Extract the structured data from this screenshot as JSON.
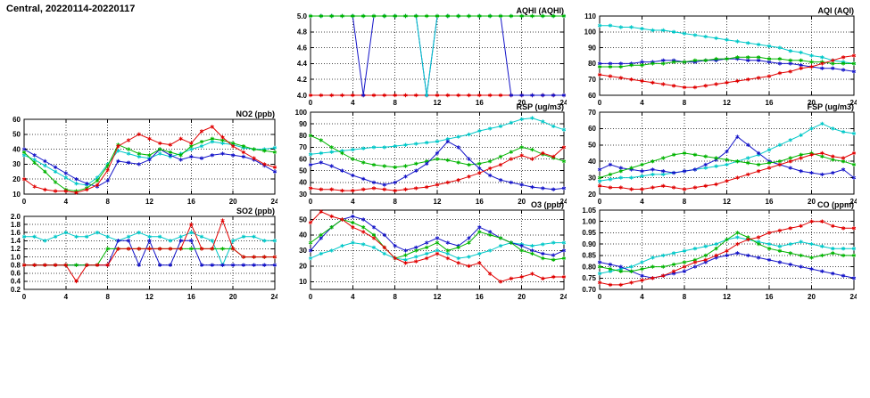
{
  "page_title": "Central, 20220114-20220117",
  "colors": {
    "red": "#e00000",
    "green": "#00b400",
    "blue": "#1414c8",
    "cyan": "#00c8c8"
  },
  "chart_data": [
    {
      "id": "aqhi",
      "type": "line",
      "title": "AQHI (AQHI)",
      "xlabel": "",
      "ylabel": "",
      "xlim": [
        0,
        24
      ],
      "xticks": [
        0,
        4,
        8,
        12,
        16,
        20,
        24
      ],
      "ylim": [
        4.0,
        5.0
      ],
      "yticks": [
        4.0,
        4.2,
        4.4,
        4.6,
        4.8,
        5.0
      ],
      "ydec": 1,
      "grid": true,
      "series": [
        {
          "color": "red",
          "values": [
            4,
            4,
            4,
            4,
            4,
            4,
            4,
            4,
            4,
            4,
            4,
            4,
            4,
            4,
            4,
            4,
            4,
            4,
            4,
            4,
            4,
            4,
            4,
            4,
            4
          ]
        },
        {
          "color": "blue",
          "values": [
            5,
            5,
            5,
            5,
            5,
            4,
            5,
            5,
            5,
            5,
            5,
            4,
            5,
            5,
            5,
            5,
            5,
            5,
            5,
            4,
            4,
            4,
            4,
            4,
            4
          ]
        },
        {
          "color": "cyan",
          "values": [
            5,
            5,
            5,
            5,
            5,
            5,
            5,
            5,
            5,
            5,
            5,
            4,
            5,
            5,
            5,
            5,
            5,
            5,
            5,
            5,
            5,
            5,
            5,
            5,
            5
          ]
        },
        {
          "color": "green",
          "values": [
            5,
            5,
            5,
            5,
            5,
            5,
            5,
            5,
            5,
            5,
            5,
            5,
            5,
            5,
            5,
            5,
            5,
            5,
            5,
            5,
            5,
            5,
            5,
            5,
            5
          ]
        }
      ]
    },
    {
      "id": "aqi",
      "type": "line",
      "title": "AQI (AQI)",
      "xlabel": "",
      "ylabel": "",
      "xlim": [
        0,
        24
      ],
      "xticks": [
        0,
        4,
        8,
        12,
        16,
        20,
        24
      ],
      "ylim": [
        60,
        110
      ],
      "yticks": [
        60,
        70,
        80,
        90,
        100,
        110
      ],
      "ydec": 0,
      "grid": true,
      "series": [
        {
          "color": "cyan",
          "values": [
            104,
            104,
            103,
            103,
            102,
            101,
            101,
            100,
            99,
            98,
            97,
            96,
            95,
            94,
            93,
            92,
            91,
            90,
            88,
            87,
            85,
            84,
            82,
            81,
            80
          ]
        },
        {
          "color": "blue",
          "values": [
            80,
            80,
            80,
            80,
            81,
            81,
            82,
            82,
            81,
            81,
            82,
            82,
            83,
            83,
            82,
            82,
            81,
            80,
            80,
            79,
            78,
            77,
            77,
            76,
            75
          ]
        },
        {
          "color": "green",
          "values": [
            78,
            78,
            78,
            79,
            79,
            80,
            80,
            81,
            81,
            82,
            82,
            83,
            83,
            84,
            84,
            84,
            83,
            83,
            82,
            82,
            81,
            81,
            80,
            80,
            80
          ]
        },
        {
          "color": "red",
          "values": [
            73,
            72,
            71,
            70,
            69,
            68,
            67,
            66,
            65,
            65,
            66,
            67,
            68,
            69,
            70,
            71,
            72,
            74,
            75,
            77,
            78,
            80,
            82,
            84,
            85
          ]
        }
      ]
    },
    {
      "id": "no2",
      "type": "line",
      "title": "NO2 (ppb)",
      "xlabel": "",
      "ylabel": "",
      "xlim": [
        0,
        24
      ],
      "xticks": [
        0,
        4,
        8,
        12,
        16,
        20,
        24
      ],
      "ylim": [
        10,
        60
      ],
      "yticks": [
        10,
        20,
        30,
        40,
        50,
        60
      ],
      "ydec": 0,
      "grid": true,
      "series": [
        {
          "color": "cyan",
          "values": [
            36,
            33,
            29,
            25,
            21,
            17,
            16,
            21,
            30,
            39,
            37,
            35,
            34,
            37,
            35,
            37,
            40,
            42,
            45,
            44,
            43,
            41,
            40,
            40,
            41
          ]
        },
        {
          "color": "blue",
          "values": [
            40,
            36,
            32,
            28,
            24,
            20,
            17,
            15,
            19,
            32,
            31,
            30,
            33,
            40,
            36,
            33,
            35,
            34,
            36,
            37,
            36,
            35,
            33,
            29,
            25
          ]
        },
        {
          "color": "green",
          "values": [
            38,
            31,
            25,
            18,
            13,
            12,
            14,
            19,
            29,
            43,
            40,
            37,
            36,
            40,
            38,
            36,
            42,
            45,
            47,
            46,
            44,
            42,
            40,
            39,
            38
          ]
        },
        {
          "color": "red",
          "values": [
            20,
            15,
            13,
            12,
            12,
            11,
            13,
            16,
            26,
            42,
            46,
            50,
            47,
            44,
            43,
            47,
            44,
            52,
            55,
            48,
            42,
            38,
            34,
            30,
            28
          ]
        }
      ]
    },
    {
      "id": "rsp",
      "type": "line",
      "title": "RSP (ug/m3)",
      "xlabel": "",
      "ylabel": "",
      "xlim": [
        0,
        24
      ],
      "xticks": [
        0,
        4,
        8,
        12,
        16,
        20,
        24
      ],
      "ylim": [
        30,
        100
      ],
      "yticks": [
        30,
        40,
        50,
        60,
        70,
        80,
        90,
        100
      ],
      "ydec": 0,
      "grid": true,
      "series": [
        {
          "color": "cyan",
          "values": [
            64,
            65,
            66,
            67,
            68,
            69,
            70,
            70,
            71,
            72,
            73,
            74,
            75,
            77,
            79,
            81,
            84,
            86,
            88,
            91,
            94,
            95,
            92,
            88,
            85
          ]
        },
        {
          "color": "green",
          "values": [
            80,
            76,
            70,
            65,
            60,
            57,
            55,
            54,
            53,
            54,
            56,
            58,
            60,
            59,
            57,
            55,
            56,
            58,
            62,
            66,
            70,
            68,
            64,
            61,
            58
          ]
        },
        {
          "color": "blue",
          "values": [
            55,
            57,
            54,
            50,
            46,
            43,
            40,
            38,
            40,
            45,
            50,
            56,
            65,
            75,
            70,
            60,
            52,
            46,
            42,
            40,
            38,
            36,
            35,
            34,
            35
          ]
        },
        {
          "color": "red",
          "values": [
            35,
            34,
            34,
            33,
            33,
            34,
            35,
            34,
            33,
            34,
            35,
            36,
            38,
            40,
            42,
            45,
            48,
            52,
            55,
            60,
            63,
            60,
            65,
            62,
            70
          ]
        }
      ]
    },
    {
      "id": "fsp",
      "type": "line",
      "title": "FSP (ug/m3)",
      "xlabel": "",
      "ylabel": "",
      "xlim": [
        0,
        24
      ],
      "xticks": [
        0,
        4,
        8,
        12,
        16,
        20,
        24
      ],
      "ylim": [
        20,
        70
      ],
      "yticks": [
        20,
        30,
        40,
        50,
        60,
        70
      ],
      "ydec": 0,
      "grid": true,
      "series": [
        {
          "color": "cyan",
          "values": [
            28,
            29,
            30,
            30,
            31,
            32,
            32,
            33,
            34,
            35,
            36,
            37,
            38,
            40,
            42,
            44,
            47,
            50,
            53,
            56,
            60,
            63,
            60,
            58,
            57
          ]
        },
        {
          "color": "blue",
          "values": [
            35,
            38,
            36,
            35,
            34,
            35,
            34,
            33,
            34,
            35,
            38,
            41,
            46,
            55,
            50,
            45,
            40,
            38,
            36,
            34,
            33,
            32,
            33,
            35,
            30
          ]
        },
        {
          "color": "green",
          "values": [
            30,
            32,
            34,
            36,
            38,
            40,
            42,
            44,
            45,
            44,
            43,
            42,
            41,
            40,
            39,
            38,
            39,
            40,
            42,
            44,
            45,
            43,
            41,
            40,
            38
          ]
        },
        {
          "color": "red",
          "values": [
            25,
            24,
            24,
            23,
            23,
            24,
            25,
            24,
            23,
            24,
            25,
            26,
            28,
            30,
            32,
            34,
            36,
            38,
            40,
            42,
            44,
            45,
            43,
            42,
            45
          ]
        }
      ]
    },
    {
      "id": "so2",
      "type": "line",
      "title": "SO2 (ppb)",
      "xlabel": "",
      "ylabel": "",
      "xlim": [
        0,
        24
      ],
      "xticks": [
        0,
        4,
        8,
        12,
        16,
        20,
        24
      ],
      "ylim": [
        0.2,
        2.0
      ],
      "yticks": [
        0.2,
        0.4,
        0.6,
        0.8,
        1.0,
        1.2,
        1.4,
        1.6,
        1.8,
        2.0
      ],
      "ydec": 1,
      "grid": true,
      "series": [
        {
          "color": "cyan",
          "values": [
            1.5,
            1.5,
            1.4,
            1.5,
            1.6,
            1.5,
            1.5,
            1.6,
            1.5,
            1.4,
            1.5,
            1.6,
            1.5,
            1.5,
            1.4,
            1.5,
            1.6,
            1.5,
            1.4,
            0.8,
            1.4,
            1.5,
            1.5,
            1.4,
            1.4
          ]
        },
        {
          "color": "blue",
          "values": [
            0.8,
            0.8,
            0.8,
            0.8,
            0.8,
            0.8,
            0.8,
            0.8,
            0.8,
            1.4,
            1.4,
            0.8,
            1.4,
            0.8,
            0.8,
            1.4,
            1.4,
            0.8,
            0.8,
            0.8,
            0.8,
            0.8,
            0.8,
            0.8,
            0.8
          ]
        },
        {
          "color": "green",
          "values": [
            0.8,
            0.8,
            0.8,
            0.8,
            0.8,
            0.8,
            0.8,
            0.8,
            1.2,
            1.2,
            1.2,
            1.2,
            1.2,
            1.2,
            1.2,
            1.2,
            1.2,
            1.2,
            1.2,
            1.2,
            1.2,
            1.0,
            1.0,
            1.0,
            1.0
          ]
        },
        {
          "color": "red",
          "values": [
            0.8,
            0.8,
            0.8,
            0.8,
            0.8,
            0.4,
            0.8,
            0.8,
            0.8,
            1.2,
            1.2,
            1.2,
            1.2,
            1.2,
            1.2,
            1.2,
            1.8,
            1.2,
            1.2,
            1.9,
            1.2,
            1.0,
            1.0,
            1.0,
            1.0
          ]
        }
      ]
    },
    {
      "id": "o3",
      "type": "line",
      "title": "O3 (ppb)",
      "xlabel": "",
      "ylabel": "",
      "xlim": [
        0,
        24
      ],
      "xticks": [
        0,
        4,
        8,
        12,
        16,
        20,
        24
      ],
      "ylim": [
        5,
        56
      ],
      "yticks": [
        10,
        20,
        30,
        40,
        50
      ],
      "ydec": 0,
      "grid": true,
      "series": [
        {
          "color": "cyan",
          "values": [
            25,
            28,
            30,
            33,
            35,
            34,
            32,
            28,
            25,
            24,
            26,
            28,
            30,
            28,
            25,
            26,
            28,
            30,
            33,
            35,
            34,
            33,
            34,
            35,
            35
          ]
        },
        {
          "color": "blue",
          "values": [
            30,
            38,
            45,
            50,
            52,
            50,
            45,
            40,
            33,
            30,
            32,
            35,
            38,
            35,
            33,
            38,
            45,
            42,
            38,
            35,
            33,
            30,
            28,
            27,
            30
          ]
        },
        {
          "color": "green",
          "values": [
            35,
            40,
            45,
            50,
            48,
            45,
            40,
            32,
            25,
            27,
            30,
            32,
            35,
            30,
            32,
            35,
            42,
            40,
            38,
            35,
            30,
            28,
            25,
            24,
            25
          ]
        },
        {
          "color": "red",
          "values": [
            48,
            55,
            52,
            50,
            45,
            42,
            38,
            32,
            25,
            22,
            23,
            25,
            28,
            25,
            22,
            20,
            22,
            15,
            10,
            12,
            13,
            15,
            12,
            13,
            13
          ]
        }
      ]
    },
    {
      "id": "co",
      "type": "line",
      "title": "CO (ppm)",
      "xlabel": "",
      "ylabel": "",
      "xlim": [
        0,
        24
      ],
      "xticks": [
        0,
        4,
        8,
        12,
        16,
        20,
        24
      ],
      "ylim": [
        0.7,
        1.05
      ],
      "yticks": [
        0.7,
        0.75,
        0.8,
        0.85,
        0.9,
        0.95,
        1.0,
        1.05
      ],
      "ydec": 2,
      "grid": true,
      "series": [
        {
          "color": "cyan",
          "values": [
            0.77,
            0.78,
            0.79,
            0.8,
            0.82,
            0.84,
            0.85,
            0.86,
            0.87,
            0.88,
            0.89,
            0.9,
            0.92,
            0.93,
            0.92,
            0.91,
            0.9,
            0.89,
            0.9,
            0.91,
            0.9,
            0.89,
            0.88,
            0.88,
            0.88
          ]
        },
        {
          "color": "blue",
          "values": [
            0.82,
            0.81,
            0.8,
            0.78,
            0.76,
            0.75,
            0.76,
            0.77,
            0.78,
            0.8,
            0.82,
            0.84,
            0.85,
            0.86,
            0.85,
            0.84,
            0.83,
            0.82,
            0.81,
            0.8,
            0.79,
            0.78,
            0.77,
            0.76,
            0.75
          ]
        },
        {
          "color": "green",
          "values": [
            0.8,
            0.79,
            0.78,
            0.78,
            0.79,
            0.8,
            0.8,
            0.81,
            0.82,
            0.83,
            0.85,
            0.88,
            0.92,
            0.95,
            0.93,
            0.9,
            0.88,
            0.87,
            0.86,
            0.85,
            0.84,
            0.85,
            0.86,
            0.85,
            0.85
          ]
        },
        {
          "color": "red",
          "values": [
            0.73,
            0.72,
            0.72,
            0.73,
            0.74,
            0.75,
            0.76,
            0.78,
            0.8,
            0.82,
            0.83,
            0.85,
            0.87,
            0.9,
            0.92,
            0.93,
            0.95,
            0.96,
            0.97,
            0.98,
            1.0,
            1.0,
            0.98,
            0.97,
            0.97
          ]
        }
      ]
    }
  ]
}
